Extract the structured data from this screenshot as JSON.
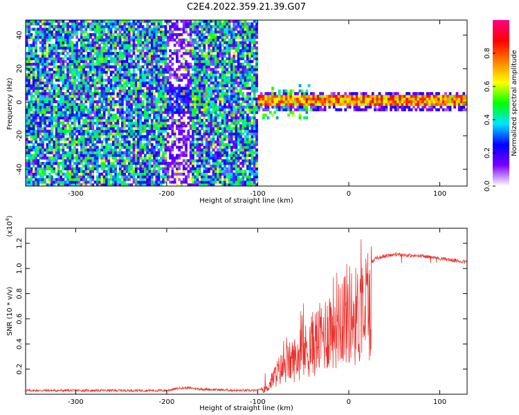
{
  "title": "C2E4.2022.359.21.39.G07",
  "chart_data": [
    {
      "type": "heatmap",
      "xlabel": "Height of straight line (km)",
      "ylabel": "Frequency (Hz)",
      "xlim": [
        -355,
        130
      ],
      "ylim": [
        -50,
        49
      ],
      "xticks": [
        -300,
        -200,
        -100,
        0,
        100
      ],
      "yticks": [
        -40,
        -20,
        0,
        20,
        40
      ],
      "noise_region_x": [
        -355,
        -100
      ],
      "noise_gap_x": [
        -200,
        -175
      ],
      "signal_region_x": [
        -100,
        130
      ],
      "signal_center_freq": 0,
      "signal_halfwidth_hz": 3,
      "colorbar": {
        "label": "Normalized spectral amplitude",
        "ticks": [
          "0.0",
          "0.2",
          "0.4",
          "0.6",
          "0.8"
        ],
        "range": [
          0.0,
          1.0
        ],
        "colors": [
          "#ffffff",
          "#7a00ff",
          "#0000ff",
          "#00e5ff",
          "#00ff00",
          "#ffff00",
          "#ff8000",
          "#ff0000",
          "#ff0080"
        ]
      }
    },
    {
      "type": "line",
      "xlabel": "Height of straight line (km)",
      "ylabel": "SNR (10 * v/v)",
      "yscale_label": "(x10",
      "yscale_exp": "4",
      "yscale_close": ")",
      "xlim": [
        -355,
        130
      ],
      "ylim": [
        0,
        1.32
      ],
      "xticks": [
        -300,
        -200,
        -100,
        0,
        100
      ],
      "yticks": [
        0.2,
        0.4,
        0.6,
        0.8,
        1.0,
        1.2
      ],
      "color": "#e8322d",
      "series": [
        {
          "name": "SNR",
          "x": [
            -355,
            -300,
            -250,
            -200,
            -185,
            -175,
            -160,
            -120,
            -100,
            -90,
            -80,
            -70,
            -60,
            -50,
            -40,
            -30,
            -20,
            -10,
            0,
            10,
            20,
            30,
            40,
            50,
            60,
            70,
            80,
            90,
            100,
            110,
            120,
            130
          ],
          "y": [
            0.03,
            0.03,
            0.03,
            0.03,
            0.05,
            0.05,
            0.04,
            0.03,
            0.03,
            0.06,
            0.22,
            0.32,
            0.38,
            0.45,
            0.55,
            0.62,
            0.75,
            0.88,
            0.88,
            0.85,
            1.02,
            1.08,
            1.1,
            1.11,
            1.11,
            1.1,
            1.1,
            1.09,
            1.08,
            1.07,
            1.06,
            1.05
          ]
        }
      ]
    }
  ]
}
